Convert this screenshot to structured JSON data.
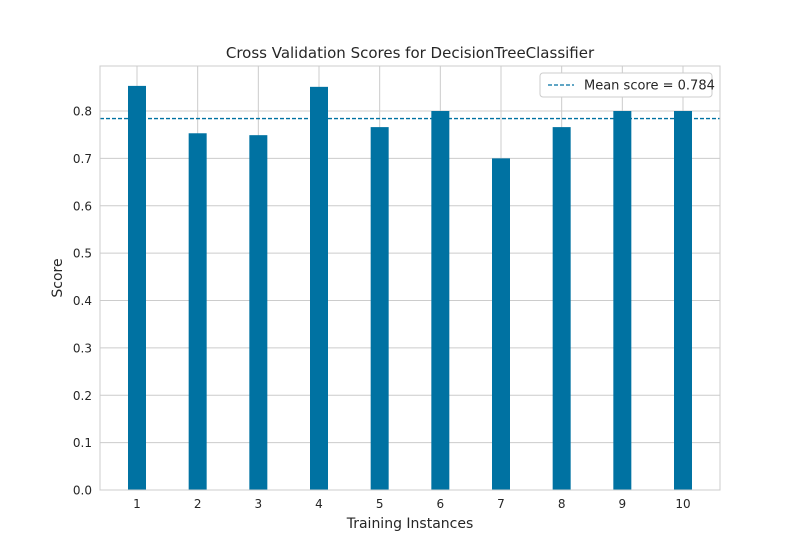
{
  "chart_data": {
    "type": "bar",
    "title": "Cross Validation Scores for DecisionTreeClassifier",
    "xlabel": "Training Instances",
    "ylabel": "Score",
    "categories": [
      "1",
      "2",
      "3",
      "4",
      "5",
      "6",
      "7",
      "8",
      "9",
      "10"
    ],
    "values": [
      0.853,
      0.753,
      0.749,
      0.851,
      0.766,
      0.8,
      0.7,
      0.766,
      0.8,
      0.8
    ],
    "ylim": [
      0,
      0.895
    ],
    "yticks": [
      "0.0",
      "0.1",
      "0.2",
      "0.3",
      "0.4",
      "0.5",
      "0.6",
      "0.7",
      "0.8"
    ],
    "mean_score": 0.784,
    "legend": {
      "label": "Mean score = 0.784",
      "placement": "top-right"
    },
    "grid": true,
    "colors": {
      "bar": "#0072a2",
      "mean_line": "#0072a2",
      "grid": "#cccccc",
      "axes": "#cccccc"
    }
  }
}
